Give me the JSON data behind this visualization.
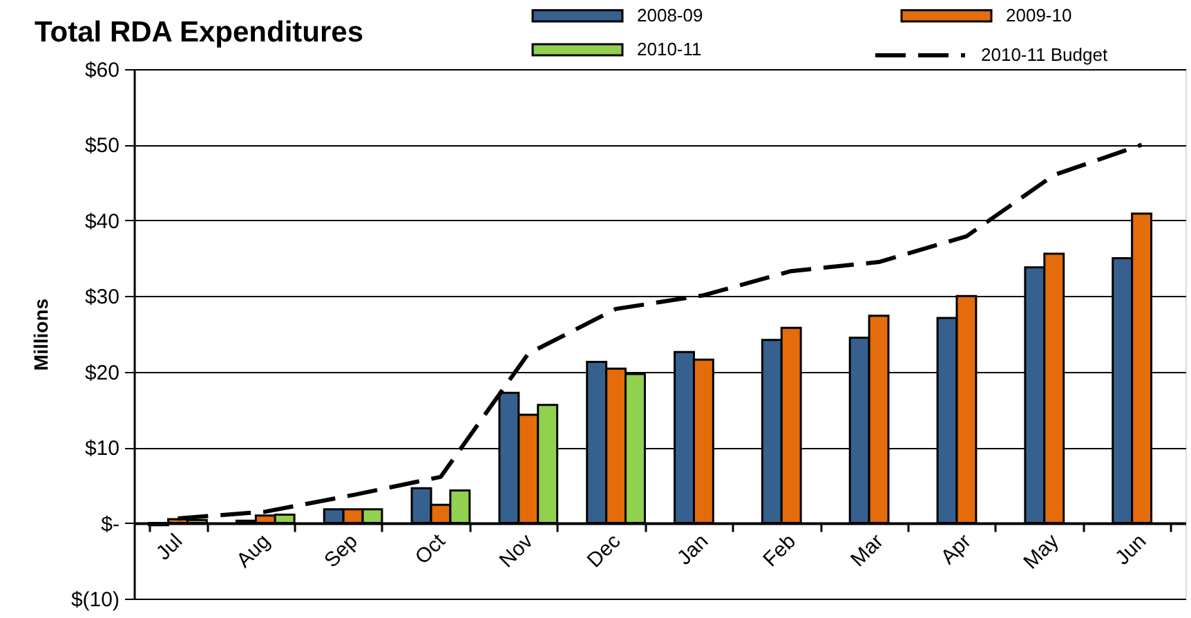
{
  "chart_data": {
    "type": "bar",
    "title": "Total RDA Expenditures",
    "ylabel": "Millions",
    "categories": [
      "Jul",
      "Aug",
      "Sep",
      "Oct",
      "Nov",
      "Dec",
      "Jan",
      "Feb",
      "Mar",
      "Apr",
      "May",
      "Jun"
    ],
    "series": [
      {
        "name": "2008-09",
        "color": "#36608e",
        "values": [
          -0.3,
          0.3,
          1.8,
          4.6,
          17.2,
          21.3,
          22.6,
          24.2,
          24.5,
          27.1,
          33.8,
          35.0
        ]
      },
      {
        "name": "2009-10",
        "color": "#e46c0a",
        "values": [
          0.5,
          1.0,
          1.8,
          2.4,
          14.3,
          20.4,
          21.6,
          25.8,
          27.4,
          30.0,
          35.6,
          40.9
        ]
      },
      {
        "name": "2010-11",
        "color": "#92d050",
        "values": [
          0.4,
          1.1,
          1.8,
          4.3,
          15.6,
          19.7,
          null,
          null,
          null,
          null,
          null,
          null
        ]
      },
      {
        "name": "2010-11 Budget",
        "type": "line",
        "color": "#000000",
        "line_style": "dashed",
        "values": [
          0.6,
          1.5,
          3.7,
          6.1,
          22.4,
          28.3,
          30.1,
          33.3,
          34.5,
          37.9,
          46.0,
          50.0
        ]
      }
    ],
    "ylim": [
      -10,
      60
    ],
    "yticks": [
      {
        "value": -10,
        "label": "$(10)"
      },
      {
        "value": 0,
        "label": "$-"
      },
      {
        "value": 10,
        "label": "$10"
      },
      {
        "value": 20,
        "label": "$20"
      },
      {
        "value": 30,
        "label": "$30"
      },
      {
        "value": 40,
        "label": "$40"
      },
      {
        "value": 50,
        "label": "$50"
      },
      {
        "value": 60,
        "label": "$60"
      }
    ],
    "grid": "y",
    "legend": "top"
  }
}
